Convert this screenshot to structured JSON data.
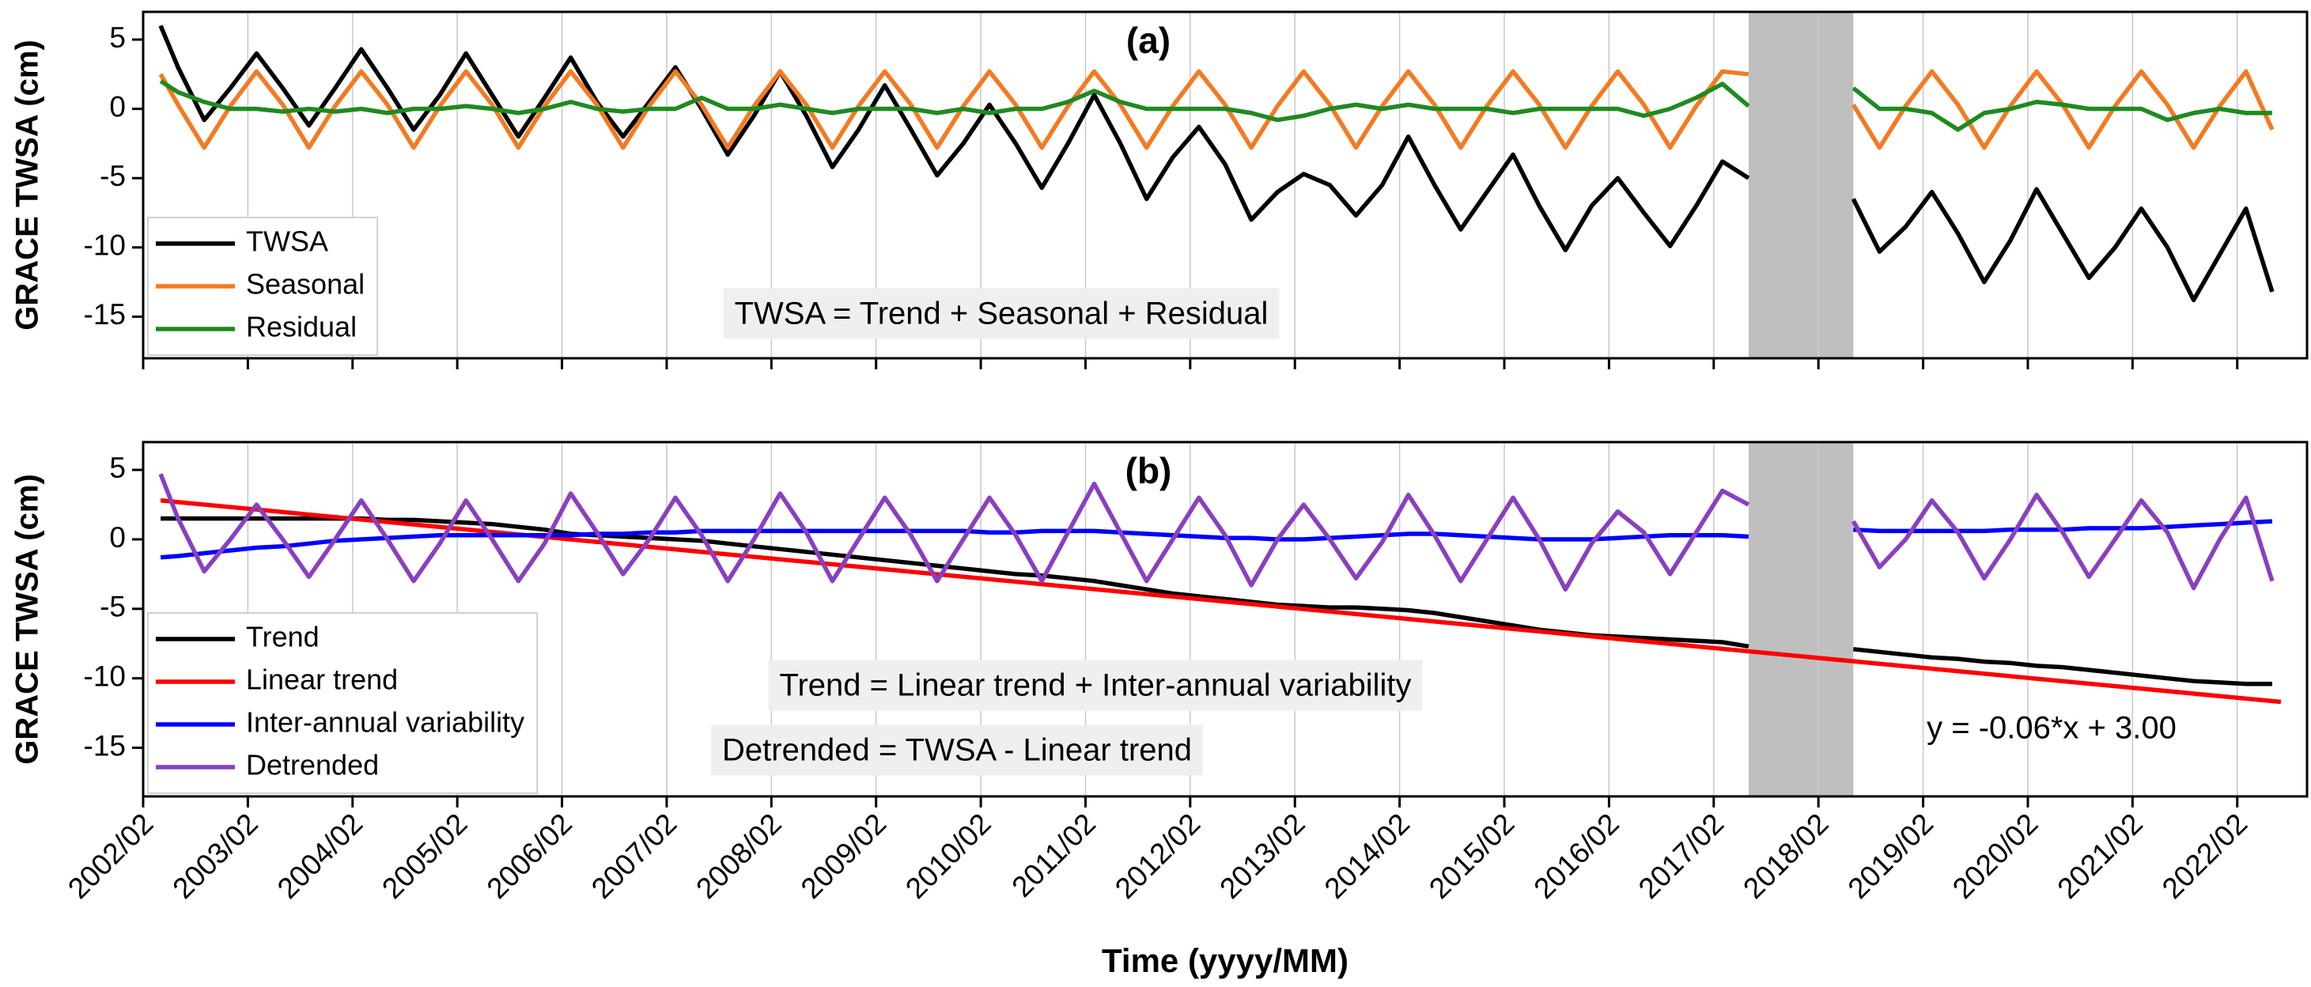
{
  "chart_data": [
    {
      "type": "line",
      "title": "(a)",
      "ylabel": "GRACE TWSA (cm)",
      "xlim": [
        "2002/02",
        "2022/10"
      ],
      "ylim": [
        -18,
        7
      ],
      "yticks": [
        5,
        0,
        -5,
        -10,
        -15
      ],
      "grid": "x",
      "legend": "upper left",
      "shaded_region": [
        "2017/06",
        "2018/06"
      ],
      "shaded_color": "#bfbfbf",
      "annotations": [
        {
          "text": "TWSA = Trend + Seasonal + Residual",
          "background": "#efefef"
        }
      ],
      "x": [
        "2002/04",
        "2002/06",
        "2002/09",
        "2002/12",
        "2003/03",
        "2003/06",
        "2003/09",
        "2003/12",
        "2004/03",
        "2004/06",
        "2004/09",
        "2004/12",
        "2005/03",
        "2005/06",
        "2005/09",
        "2005/12",
        "2006/03",
        "2006/06",
        "2006/09",
        "2006/12",
        "2007/03",
        "2007/06",
        "2007/09",
        "2007/12",
        "2008/03",
        "2008/06",
        "2008/09",
        "2008/12",
        "2009/03",
        "2009/06",
        "2009/09",
        "2009/12",
        "2010/03",
        "2010/06",
        "2010/09",
        "2010/12",
        "2011/03",
        "2011/06",
        "2011/09",
        "2011/12",
        "2012/03",
        "2012/06",
        "2012/09",
        "2012/12",
        "2013/03",
        "2013/06",
        "2013/09",
        "2013/12",
        "2014/03",
        "2014/06",
        "2014/09",
        "2014/12",
        "2015/03",
        "2015/06",
        "2015/09",
        "2015/12",
        "2016/03",
        "2016/06",
        "2016/09",
        "2016/12",
        "2017/03",
        "2017/06",
        "2017/12",
        "2018/06",
        "2018/09",
        "2018/12",
        "2019/03",
        "2019/06",
        "2019/09",
        "2019/12",
        "2020/03",
        "2020/06",
        "2020/09",
        "2020/12",
        "2021/03",
        "2021/06",
        "2021/09",
        "2021/12",
        "2022/03",
        "2022/06"
      ],
      "series": [
        {
          "name": "TWSA",
          "color": "#000000",
          "values": [
            6.0,
            3.0,
            -0.8,
            1.5,
            4.0,
            1.5,
            -1.2,
            1.5,
            4.3,
            1.5,
            -1.5,
            1.0,
            4.0,
            1.0,
            -2.0,
            0.8,
            3.7,
            0.5,
            -2.0,
            0.5,
            3.0,
            0.0,
            -3.3,
            -0.5,
            2.7,
            -0.5,
            -4.2,
            -1.5,
            1.7,
            -1.5,
            -4.8,
            -2.5,
            0.3,
            -2.5,
            -5.7,
            -2.5,
            1.0,
            -2.5,
            -6.5,
            -3.5,
            -1.3,
            -4.0,
            -8.0,
            -6.0,
            -4.7,
            -5.5,
            -7.7,
            -5.5,
            -2.0,
            -5.5,
            -8.7,
            -6.0,
            -3.3,
            -7.0,
            -10.2,
            -7.0,
            -5.0,
            -7.5,
            -9.9,
            -7.0,
            -3.8,
            -5.0,
            null,
            -6.5,
            -10.3,
            -8.5,
            -6.0,
            -9.0,
            -12.5,
            -9.5,
            -5.8,
            -9.0,
            -12.2,
            -10.0,
            -7.2,
            -10.0,
            -13.8,
            -10.5,
            -7.2,
            -13.2
          ]
        },
        {
          "name": "Seasonal",
          "color": "#f47a20",
          "values": [
            2.5,
            0.3,
            -2.8,
            0.2,
            2.7,
            0.3,
            -2.8,
            0.2,
            2.7,
            0.3,
            -2.8,
            0.2,
            2.7,
            0.3,
            -2.8,
            0.2,
            2.7,
            0.3,
            -2.8,
            0.2,
            2.7,
            0.3,
            -2.8,
            0.2,
            2.7,
            0.3,
            -2.8,
            0.2,
            2.7,
            0.3,
            -2.8,
            0.2,
            2.7,
            0.3,
            -2.8,
            0.2,
            2.7,
            0.3,
            -2.8,
            0.2,
            2.7,
            0.3,
            -2.8,
            0.2,
            2.7,
            0.3,
            -2.8,
            0.2,
            2.7,
            0.3,
            -2.8,
            0.2,
            2.7,
            0.3,
            -2.8,
            0.2,
            2.7,
            0.3,
            -2.8,
            0.2,
            2.7,
            2.5,
            null,
            0.3,
            -2.8,
            0.2,
            2.7,
            0.3,
            -2.8,
            0.2,
            2.7,
            0.3,
            -2.8,
            0.2,
            2.7,
            0.3,
            -2.8,
            0.2,
            2.7,
            -1.5
          ]
        },
        {
          "name": "Residual",
          "color": "#1f8a1f",
          "values": [
            2.0,
            1.2,
            0.5,
            0.0,
            0.0,
            -0.2,
            0.0,
            -0.2,
            0.0,
            -0.3,
            0.0,
            0.0,
            0.2,
            0.0,
            -0.3,
            0.0,
            0.5,
            0.0,
            -0.2,
            0.0,
            0.0,
            0.8,
            0.0,
            0.0,
            0.3,
            0.0,
            -0.3,
            0.0,
            0.0,
            0.0,
            -0.3,
            0.0,
            -0.3,
            0.0,
            0.0,
            0.5,
            1.3,
            0.5,
            0.0,
            0.0,
            0.0,
            0.0,
            -0.3,
            -0.8,
            -0.5,
            0.0,
            0.3,
            0.0,
            0.3,
            0.0,
            0.0,
            0.0,
            -0.3,
            0.0,
            0.0,
            0.0,
            0.0,
            -0.5,
            0.0,
            0.8,
            1.8,
            0.2,
            null,
            1.5,
            0.0,
            0.0,
            -0.3,
            -1.5,
            -0.3,
            0.0,
            0.5,
            0.3,
            0.0,
            0.0,
            0.0,
            -0.8,
            -0.3,
            0.0,
            -0.3,
            -0.3
          ]
        }
      ]
    },
    {
      "type": "line",
      "title": "(b)",
      "ylabel": "GRACE TWSA (cm)",
      "xlabel": "Time (yyyy/MM)",
      "xlim": [
        "2002/02",
        "2022/10"
      ],
      "ylim": [
        -18.5,
        7
      ],
      "yticks": [
        5,
        0,
        -5,
        -10,
        -15
      ],
      "xticks": [
        "2002/02",
        "2003/02",
        "2004/02",
        "2005/02",
        "2006/02",
        "2007/02",
        "2008/02",
        "2009/02",
        "2010/02",
        "2011/02",
        "2012/02",
        "2013/02",
        "2014/02",
        "2015/02",
        "2016/02",
        "2017/02",
        "2018/02",
        "2019/02",
        "2020/02",
        "2021/02",
        "2022/02"
      ],
      "grid": "x",
      "legend": "lower left",
      "shaded_region": [
        "2017/06",
        "2018/06"
      ],
      "shaded_color": "#bfbfbf",
      "annotations": [
        {
          "text": "Trend = Linear trend + Inter-annual variability",
          "background": "#efefef"
        },
        {
          "text": "Detrended = TWSA - Linear trend",
          "background": "#efefef"
        },
        {
          "text": "y = -0.06*x + 3.00",
          "color": "#ff0000"
        }
      ],
      "x": [
        "2002/04",
        "2002/06",
        "2002/09",
        "2002/12",
        "2003/03",
        "2003/06",
        "2003/09",
        "2003/12",
        "2004/03",
        "2004/06",
        "2004/09",
        "2004/12",
        "2005/03",
        "2005/06",
        "2005/09",
        "2005/12",
        "2006/03",
        "2006/06",
        "2006/09",
        "2006/12",
        "2007/03",
        "2007/06",
        "2007/09",
        "2007/12",
        "2008/03",
        "2008/06",
        "2008/09",
        "2008/12",
        "2009/03",
        "2009/06",
        "2009/09",
        "2009/12",
        "2010/03",
        "2010/06",
        "2010/09",
        "2010/12",
        "2011/03",
        "2011/06",
        "2011/09",
        "2011/12",
        "2012/03",
        "2012/06",
        "2012/09",
        "2012/12",
        "2013/03",
        "2013/06",
        "2013/09",
        "2013/12",
        "2014/03",
        "2014/06",
        "2014/09",
        "2014/12",
        "2015/03",
        "2015/06",
        "2015/09",
        "2015/12",
        "2016/03",
        "2016/06",
        "2016/09",
        "2016/12",
        "2017/03",
        "2017/06",
        "2017/12",
        "2018/06",
        "2018/09",
        "2018/12",
        "2019/03",
        "2019/06",
        "2019/09",
        "2019/12",
        "2020/03",
        "2020/06",
        "2020/09",
        "2020/12",
        "2021/03",
        "2021/06",
        "2021/09",
        "2021/12",
        "2022/03",
        "2022/06"
      ],
      "series": [
        {
          "name": "Trend",
          "color": "#000000",
          "values": [
            1.5,
            1.5,
            1.5,
            1.5,
            1.5,
            1.5,
            1.5,
            1.5,
            1.5,
            1.4,
            1.4,
            1.3,
            1.2,
            1.1,
            0.9,
            0.7,
            0.4,
            0.3,
            0.2,
            0.1,
            0.0,
            -0.1,
            -0.3,
            -0.5,
            -0.7,
            -0.9,
            -1.1,
            -1.3,
            -1.5,
            -1.7,
            -1.9,
            -2.1,
            -2.3,
            -2.5,
            -2.6,
            -2.8,
            -3.0,
            -3.3,
            -3.6,
            -3.9,
            -4.1,
            -4.3,
            -4.5,
            -4.7,
            -4.8,
            -4.9,
            -4.9,
            -5.0,
            -5.1,
            -5.3,
            -5.6,
            -5.9,
            -6.2,
            -6.5,
            -6.7,
            -6.9,
            -7.0,
            -7.1,
            -7.2,
            -7.3,
            -7.4,
            -7.7,
            null,
            -7.9,
            -8.1,
            -8.3,
            -8.5,
            -8.6,
            -8.8,
            -8.9,
            -9.1,
            -9.2,
            -9.4,
            -9.6,
            -9.8,
            -10.0,
            -10.2,
            -10.3,
            -10.4,
            -10.4
          ]
        },
        {
          "name": "Linear trend",
          "color": "#ff0000",
          "x": [
            "2002/04",
            "2022/07"
          ],
          "values": [
            2.8,
            -11.7
          ]
        },
        {
          "name": "Inter-annual variability",
          "color": "#0000ff",
          "values": [
            -1.3,
            -1.2,
            -1.0,
            -0.8,
            -0.6,
            -0.5,
            -0.3,
            -0.1,
            0.0,
            0.1,
            0.2,
            0.3,
            0.3,
            0.3,
            0.3,
            0.3,
            0.3,
            0.4,
            0.4,
            0.5,
            0.5,
            0.6,
            0.6,
            0.6,
            0.6,
            0.6,
            0.6,
            0.6,
            0.6,
            0.6,
            0.6,
            0.6,
            0.5,
            0.5,
            0.6,
            0.6,
            0.6,
            0.5,
            0.4,
            0.3,
            0.2,
            0.1,
            0.1,
            0.0,
            0.0,
            0.1,
            0.2,
            0.3,
            0.4,
            0.4,
            0.3,
            0.2,
            0.1,
            0.0,
            0.0,
            0.0,
            0.1,
            0.2,
            0.3,
            0.3,
            0.3,
            0.2,
            null,
            0.7,
            0.6,
            0.6,
            0.6,
            0.6,
            0.6,
            0.7,
            0.7,
            0.7,
            0.8,
            0.8,
            0.8,
            0.9,
            1.0,
            1.1,
            1.2,
            1.3
          ]
        },
        {
          "name": "Detrended",
          "color": "#8a3fbf",
          "values": [
            4.7,
            1.5,
            -2.3,
            0.0,
            2.5,
            0.0,
            -2.7,
            0.0,
            2.8,
            0.0,
            -3.0,
            -0.3,
            2.8,
            0.0,
            -3.0,
            -0.3,
            3.3,
            0.5,
            -2.5,
            0.0,
            3.0,
            0.3,
            -3.0,
            0.0,
            3.3,
            0.5,
            -3.0,
            0.0,
            3.0,
            0.3,
            -3.0,
            0.0,
            3.0,
            0.3,
            -3.0,
            0.5,
            4.0,
            0.5,
            -3.0,
            0.0,
            3.0,
            0.3,
            -3.3,
            0.0,
            2.5,
            0.0,
            -2.8,
            -0.2,
            3.2,
            0.3,
            -3.0,
            0.0,
            3.0,
            0.0,
            -3.6,
            -0.3,
            2.0,
            0.5,
            -2.5,
            0.5,
            3.5,
            2.5,
            null,
            1.3,
            -2.0,
            0.0,
            2.8,
            0.5,
            -2.8,
            0.0,
            3.2,
            0.5,
            -2.7,
            0.0,
            2.8,
            0.5,
            -3.5,
            0.0,
            3.0,
            -3.0
          ]
        }
      ]
    }
  ]
}
